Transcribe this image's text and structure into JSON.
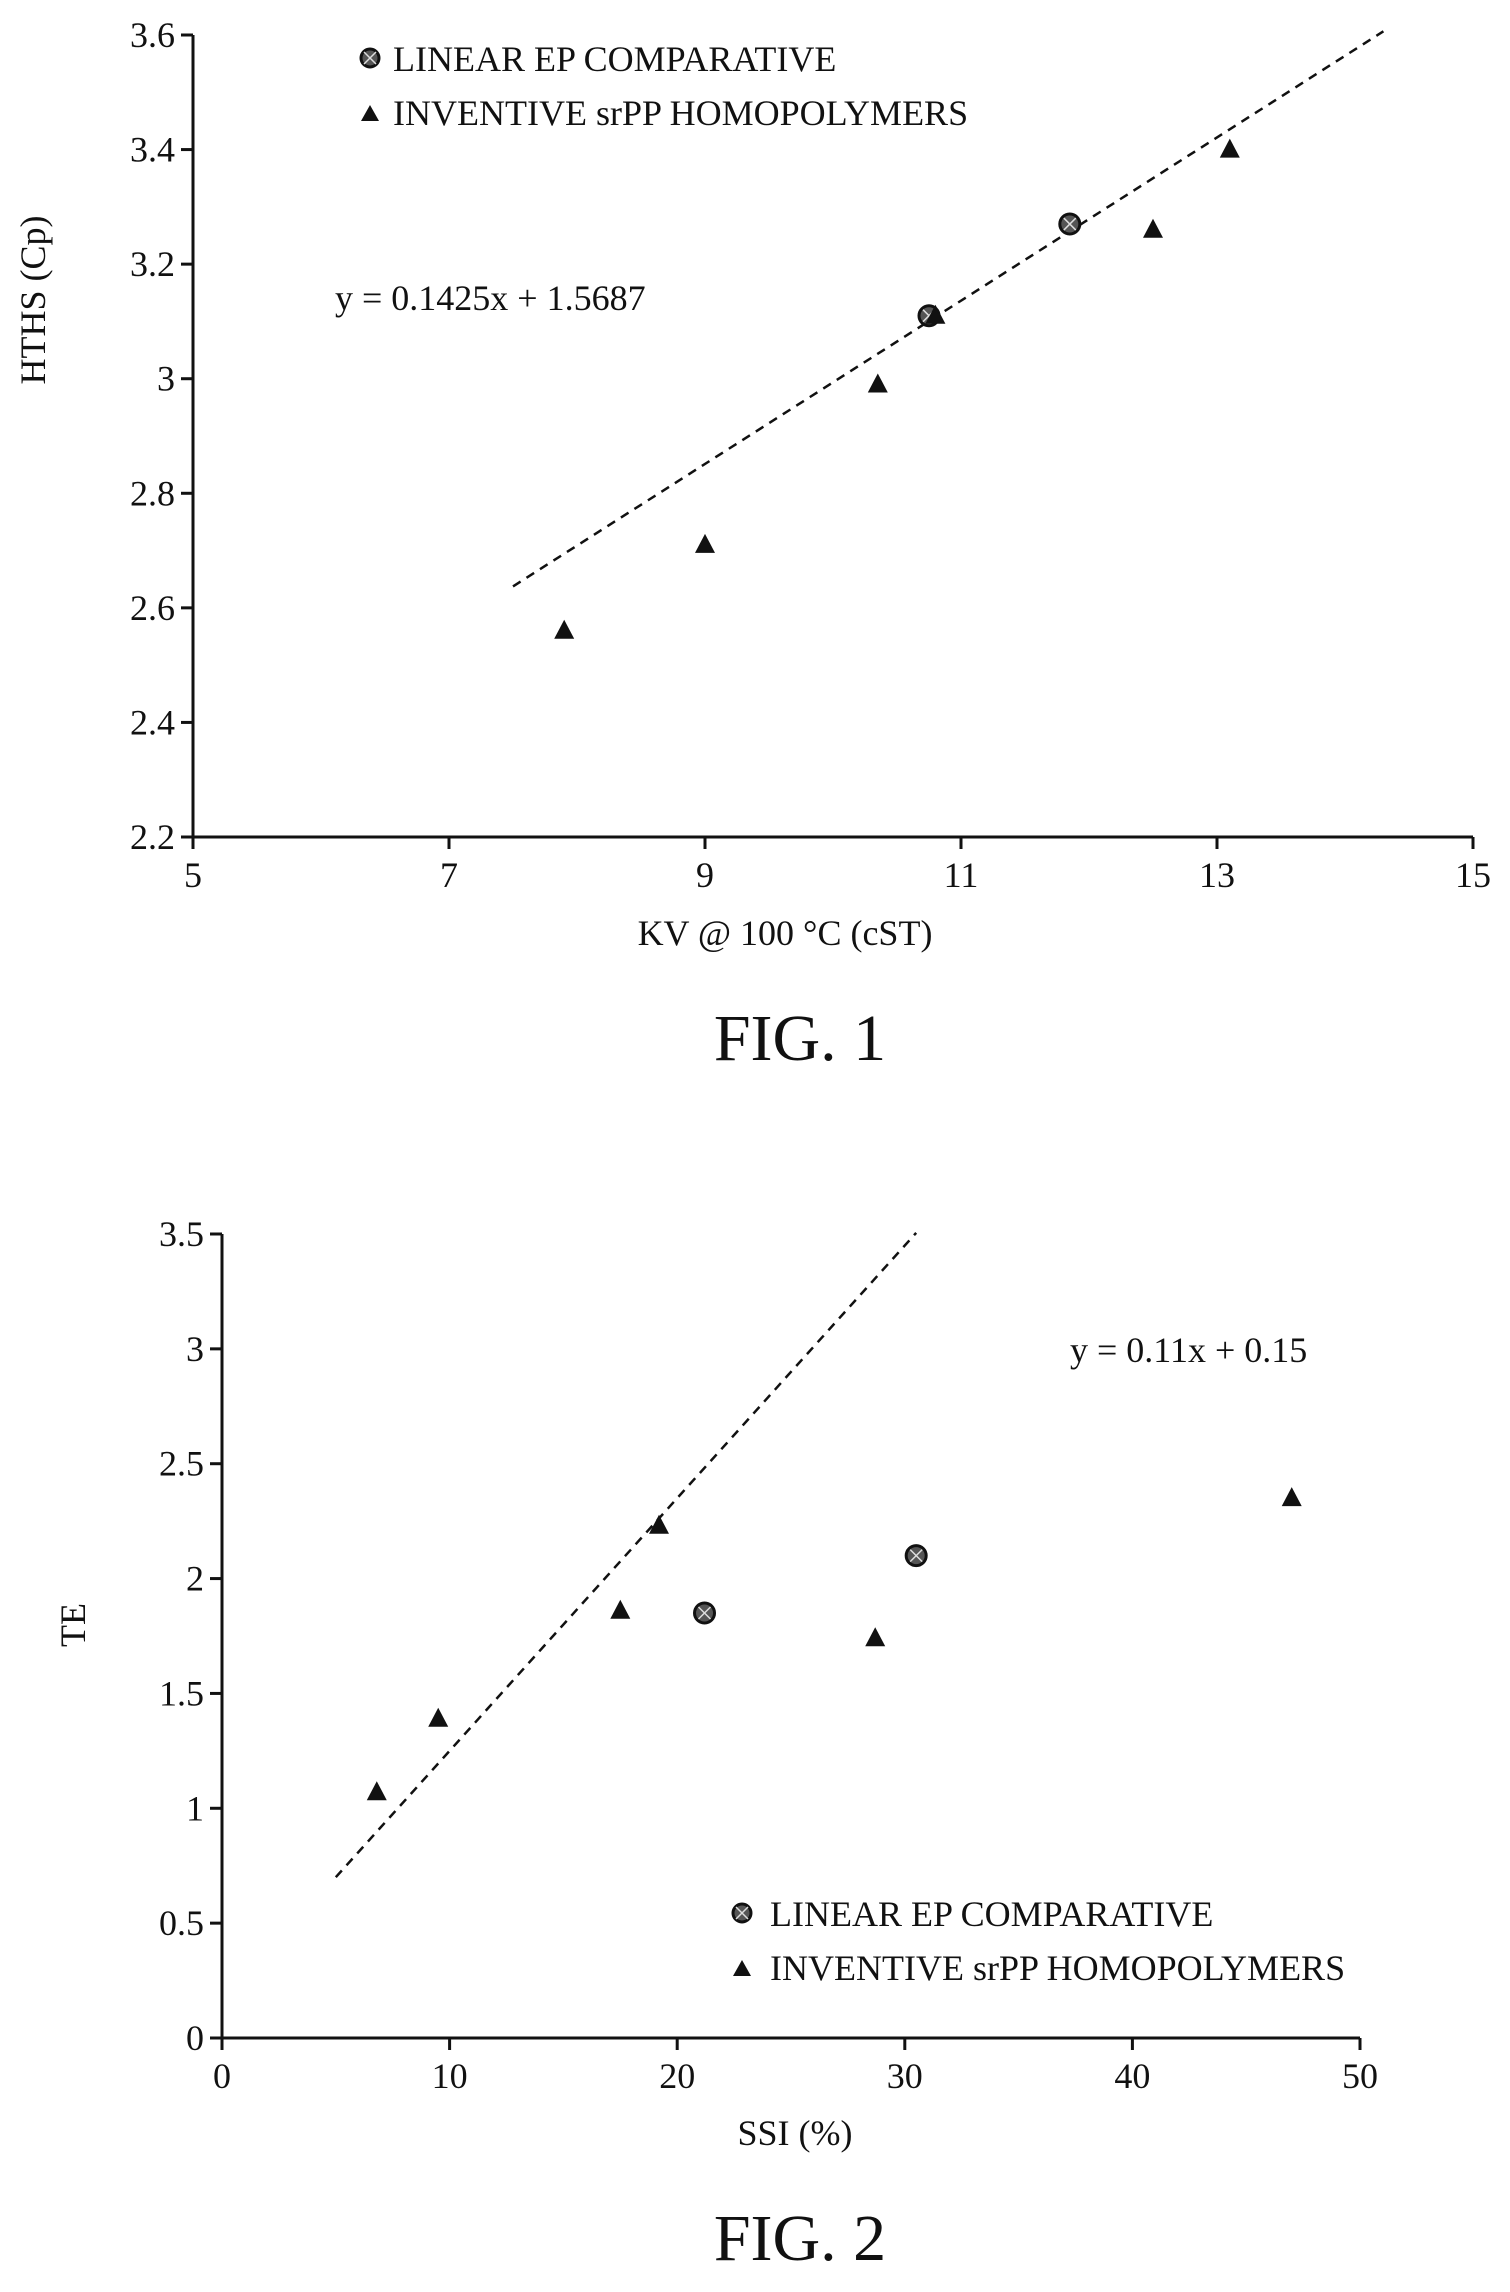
{
  "figures": [
    {
      "caption": "FIG. 1",
      "chart_data": {
        "type": "scatter",
        "xlabel": "KV @ 100 °C (cST)",
        "ylabel": "HTHS (Cp)",
        "xlim": [
          5,
          15
        ],
        "ylim": [
          2.2,
          3.6
        ],
        "xticks": [
          "5",
          "7",
          "9",
          "11",
          "13",
          "15"
        ],
        "yticks": [
          "2.2",
          "2.4",
          "2.6",
          "2.8",
          "3",
          "3.2",
          "3.4",
          "3.6"
        ],
        "legend_position": "top-left",
        "grid": false,
        "equation": "y = 0.1425x + 1.5687",
        "trendline": {
          "slope": 0.1425,
          "intercept": 1.5687,
          "x_range": [
            7.5,
            14.3
          ]
        },
        "series": [
          {
            "name": "LINEAR EP COMPARATIVE",
            "marker": "circle",
            "points": [
              [
                10.75,
                3.11
              ],
              [
                11.85,
                3.27
              ]
            ]
          },
          {
            "name": "INVENTIVE srPP HOMOPOLYMERS",
            "marker": "triangle",
            "points": [
              [
                7.9,
                2.56
              ],
              [
                9.0,
                2.71
              ],
              [
                10.35,
                2.99
              ],
              [
                10.8,
                3.11
              ],
              [
                12.5,
                3.26
              ],
              [
                13.1,
                3.4
              ]
            ]
          }
        ]
      }
    },
    {
      "caption": "FIG. 2",
      "chart_data": {
        "type": "scatter",
        "xlabel": "SSI (%)",
        "ylabel": "TE",
        "xlim": [
          0,
          50
        ],
        "ylim": [
          0,
          3.5
        ],
        "xticks": [
          "0",
          "10",
          "20",
          "30",
          "40",
          "50"
        ],
        "yticks": [
          "0",
          "0.5",
          "1",
          "1.5",
          "2",
          "2.5",
          "3",
          "3.5"
        ],
        "legend_position": "bottom-right",
        "grid": false,
        "equation": "y = 0.11x + 0.15",
        "trendline": {
          "slope": 0.11,
          "intercept": 0.15,
          "x_range": [
            5,
            30.5
          ]
        },
        "series": [
          {
            "name": "LINEAR EP COMPARATIVE",
            "marker": "circle",
            "points": [
              [
                21.2,
                1.85
              ],
              [
                30.5,
                2.1
              ]
            ]
          },
          {
            "name": "INVENTIVE srPP HOMOPOLYMERS",
            "marker": "triangle",
            "points": [
              [
                6.8,
                1.07
              ],
              [
                9.5,
                1.39
              ],
              [
                17.5,
                1.86
              ],
              [
                19.2,
                2.23
              ],
              [
                28.7,
                1.74
              ],
              [
                47.0,
                2.35
              ]
            ]
          }
        ]
      }
    }
  ]
}
